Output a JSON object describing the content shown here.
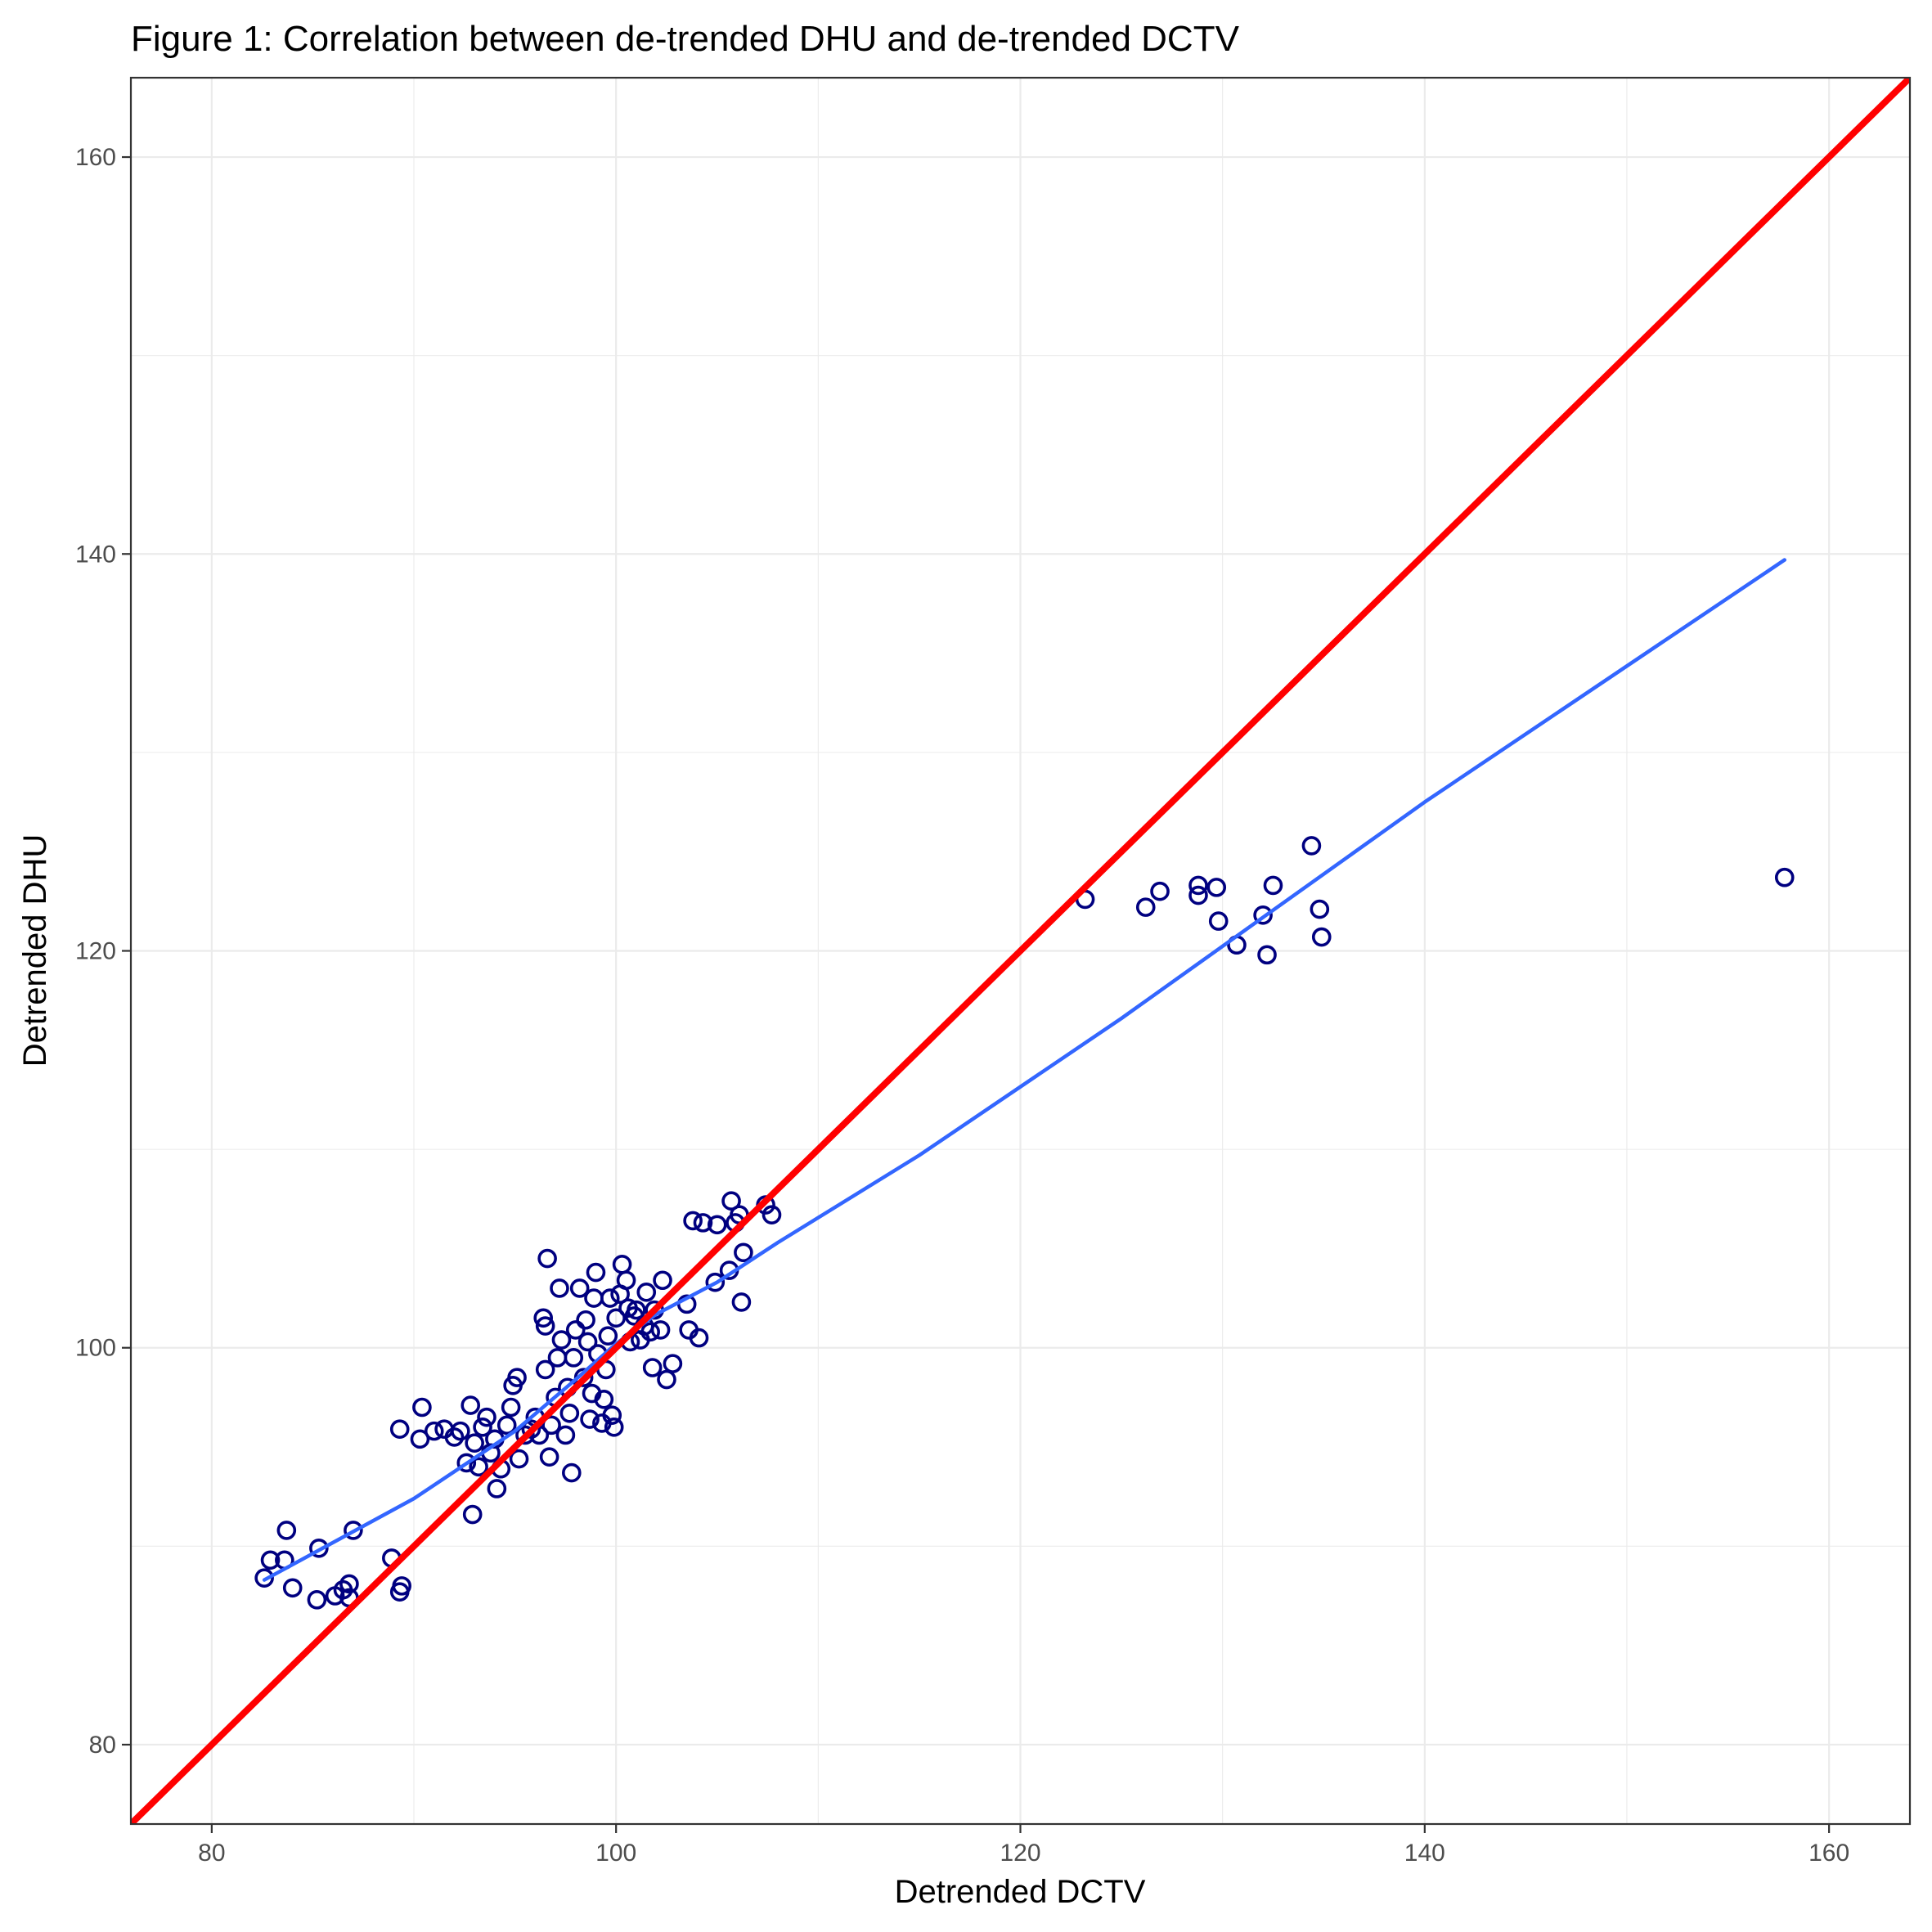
{
  "chart_data": {
    "type": "scatter",
    "title": "Figure 1: Correlation between de-trended DHU and de-trended DCTV",
    "xlabel": "Detrended DCTV",
    "ylabel": "Detrended DHU",
    "xlim": [
      76,
      164
    ],
    "ylim": [
      76,
      164
    ],
    "x_ticks": [
      80,
      100,
      120,
      140,
      160
    ],
    "y_ticks": [
      80,
      100,
      120,
      140,
      160
    ],
    "x_tick_labels": [
      "80",
      "100",
      "120",
      "140",
      "160"
    ],
    "y_tick_labels": [
      "80",
      "100",
      "120",
      "140",
      "160"
    ],
    "grid": true,
    "legend": "none",
    "series": [
      {
        "type": "scatter",
        "marker": "open-circle",
        "color": "#000080",
        "points": [
          [
            82.6,
            88.4
          ],
          [
            82.9,
            89.3
          ],
          [
            83.6,
            89.3
          ],
          [
            83.7,
            90.8
          ],
          [
            84.0,
            87.9
          ],
          [
            85.2,
            87.3
          ],
          [
            85.3,
            89.9
          ],
          [
            86.1,
            87.5
          ],
          [
            86.5,
            87.8
          ],
          [
            86.8,
            88.1
          ],
          [
            86.8,
            87.4
          ],
          [
            87.0,
            90.8
          ],
          [
            88.9,
            89.4
          ],
          [
            89.3,
            87.7
          ],
          [
            89.4,
            88.0
          ],
          [
            89.3,
            95.9
          ],
          [
            90.3,
            95.4
          ],
          [
            90.4,
            97.0
          ],
          [
            91.0,
            95.8
          ],
          [
            91.5,
            95.9
          ],
          [
            92.0,
            95.5
          ],
          [
            92.3,
            95.8
          ],
          [
            92.6,
            94.2
          ],
          [
            92.8,
            97.1
          ],
          [
            92.9,
            91.6
          ],
          [
            93.0,
            95.2
          ],
          [
            93.2,
            94.0
          ],
          [
            93.4,
            96.0
          ],
          [
            93.6,
            96.5
          ],
          [
            93.8,
            94.7
          ],
          [
            94.0,
            95.4
          ],
          [
            94.1,
            92.9
          ],
          [
            94.3,
            93.9
          ],
          [
            94.6,
            96.1
          ],
          [
            94.8,
            97.0
          ],
          [
            94.9,
            98.1
          ],
          [
            95.1,
            98.5
          ],
          [
            95.2,
            94.4
          ],
          [
            95.5,
            95.6
          ],
          [
            95.8,
            95.9
          ],
          [
            96.0,
            96.5
          ],
          [
            96.2,
            95.6
          ],
          [
            96.4,
            101.5
          ],
          [
            96.5,
            101.1
          ],
          [
            96.5,
            98.9
          ],
          [
            96.6,
            104.5
          ],
          [
            96.7,
            94.5
          ],
          [
            96.8,
            96.1
          ],
          [
            97.0,
            97.5
          ],
          [
            97.1,
            99.5
          ],
          [
            97.2,
            103.0
          ],
          [
            97.3,
            100.4
          ],
          [
            97.5,
            95.6
          ],
          [
            97.6,
            98.0
          ],
          [
            97.7,
            96.7
          ],
          [
            97.8,
            93.7
          ],
          [
            97.9,
            99.5
          ],
          [
            98.0,
            100.9
          ],
          [
            98.2,
            103.0
          ],
          [
            98.4,
            98.5
          ],
          [
            98.5,
            101.4
          ],
          [
            98.6,
            100.3
          ],
          [
            98.7,
            96.4
          ],
          [
            98.8,
            97.7
          ],
          [
            98.9,
            102.5
          ],
          [
            99.0,
            103.8
          ],
          [
            99.1,
            99.7
          ],
          [
            99.3,
            96.2
          ],
          [
            99.4,
            97.4
          ],
          [
            99.5,
            98.9
          ],
          [
            99.6,
            100.6
          ],
          [
            99.7,
            102.5
          ],
          [
            99.8,
            96.6
          ],
          [
            99.9,
            96.0
          ],
          [
            100.0,
            101.5
          ],
          [
            100.2,
            102.7
          ],
          [
            100.3,
            104.2
          ],
          [
            100.5,
            103.4
          ],
          [
            100.6,
            102.0
          ],
          [
            100.7,
            100.3
          ],
          [
            100.9,
            101.6
          ],
          [
            101.0,
            101.9
          ],
          [
            101.2,
            100.4
          ],
          [
            101.4,
            101.1
          ],
          [
            101.5,
            102.8
          ],
          [
            101.7,
            100.8
          ],
          [
            101.8,
            99.0
          ],
          [
            101.9,
            101.9
          ],
          [
            102.2,
            100.9
          ],
          [
            102.3,
            103.4
          ],
          [
            102.5,
            98.4
          ],
          [
            102.8,
            99.2
          ],
          [
            103.5,
            102.2
          ],
          [
            103.6,
            100.9
          ],
          [
            103.8,
            106.4
          ],
          [
            104.1,
            100.5
          ],
          [
            104.3,
            106.3
          ],
          [
            104.9,
            103.3
          ],
          [
            105.0,
            106.2
          ],
          [
            105.6,
            103.9
          ],
          [
            105.7,
            107.4
          ],
          [
            105.9,
            106.3
          ],
          [
            106.1,
            106.7
          ],
          [
            106.2,
            102.3
          ],
          [
            106.3,
            104.8
          ],
          [
            107.4,
            107.2
          ],
          [
            107.7,
            106.7
          ],
          [
            123.2,
            122.6
          ],
          [
            126.2,
            122.2
          ],
          [
            126.9,
            123.0
          ],
          [
            128.8,
            123.3
          ],
          [
            128.8,
            122.8
          ],
          [
            129.7,
            123.2
          ],
          [
            129.8,
            121.5
          ],
          [
            130.7,
            120.3
          ],
          [
            132.0,
            121.8
          ],
          [
            132.2,
            119.8
          ],
          [
            132.5,
            123.3
          ],
          [
            134.4,
            125.3
          ],
          [
            134.8,
            122.1
          ],
          [
            134.9,
            120.7
          ],
          [
            157.8,
            123.7
          ]
        ]
      },
      {
        "type": "line",
        "name": "",
        "color": "#3366ff",
        "points": [
          [
            82.6,
            88.3
          ],
          [
            90,
            92.4
          ],
          [
            95,
            95.8
          ],
          [
            98,
            98.4
          ],
          [
            100,
            100.2
          ],
          [
            102,
            101.7
          ],
          [
            105,
            103.3
          ],
          [
            108,
            105.3
          ],
          [
            115,
            109.7
          ],
          [
            125,
            116.6
          ],
          [
            140,
            127.5
          ],
          [
            157.8,
            139.7
          ]
        ]
      },
      {
        "type": "line",
        "name": "",
        "color": "#ff0000",
        "points": [
          [
            76,
            76
          ],
          [
            164,
            164
          ]
        ]
      }
    ]
  }
}
